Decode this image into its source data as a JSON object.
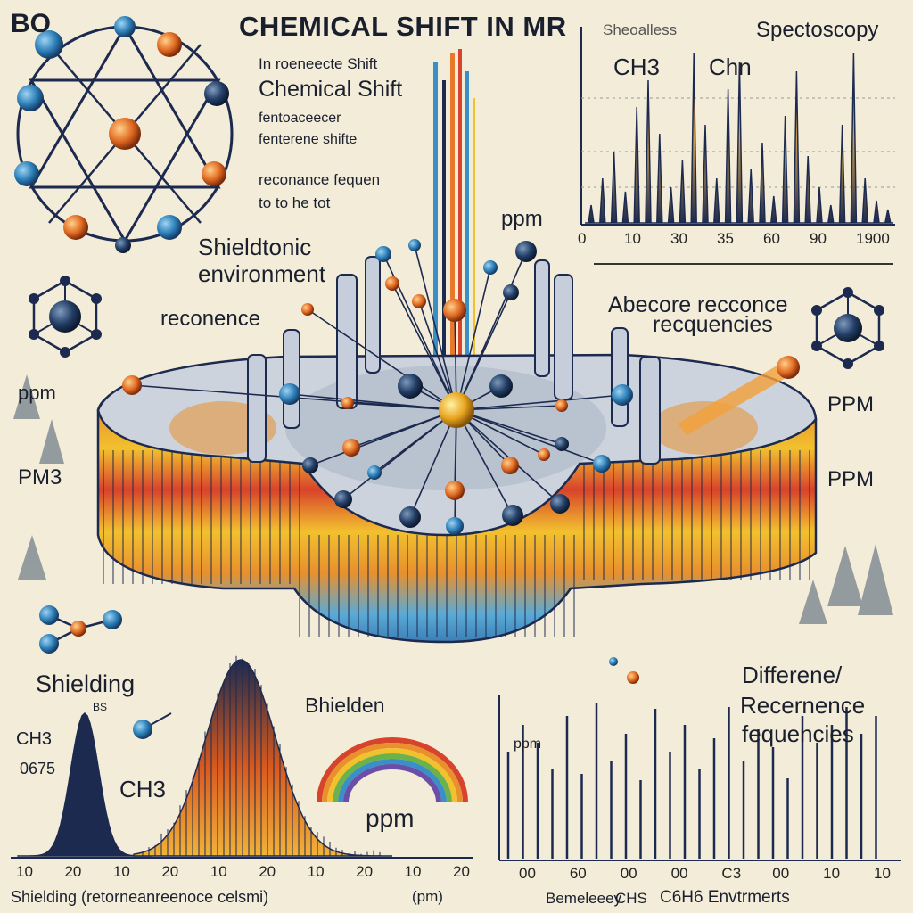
{
  "header": {
    "title": "CHEMICAL SHIFT IN MR",
    "corner_label": "BO",
    "spectroscopy_label": "Spectoscopy",
    "spectroscopy_prefix": "Sheoalless"
  },
  "center_text": {
    "line1": "In roeneecte Shift",
    "line2": "Chemical Shift",
    "line3": "fentoaceecer",
    "line4": "fenterene shifte",
    "line5": "reconance fequen",
    "line6": "to to he tot"
  },
  "top_chart": {
    "peak_label_1": "CH3",
    "peak_label_2": "Chn",
    "x_ticks": [
      "0",
      "10",
      "30",
      "35",
      "60",
      "90",
      "1900"
    ]
  },
  "labels": {
    "ppm_top": "ppm",
    "shielding_env_1": "Shieldtonic",
    "shielding_env_2": "environment",
    "resonance": "reconence",
    "resonance_right_1": "Abecore recconce",
    "resonance_right_2": "recquencies",
    "ppm_left": "ppm",
    "pm3": "PM3",
    "ppm_right": "PPM",
    "ppm_right_2": "PPM"
  },
  "bottom_left": {
    "shielding": "Shielding",
    "bs": "BS",
    "ch3_small": "CH3",
    "num": "0675",
    "ch3": "CH3",
    "bhielden": "Bhielden",
    "ppm_rainbow": "ppm",
    "x_ticks": [
      "10",
      "20",
      "10",
      "20",
      "10",
      "20",
      "10",
      "20",
      "10",
      "20"
    ],
    "xlabel": "Shielding (retorneanreenoce celsmi)",
    "xlabel_unit": "(pm)"
  },
  "bottom_right": {
    "diff_1": "Differene/",
    "diff_2": "Recernence",
    "diff_3": "fequencies",
    "ppm_small": "ppm",
    "x_ticks": [
      "00",
      "60",
      "00",
      "00",
      "C3",
      "00",
      "10",
      "10"
    ],
    "xlabel_1": "Bemeleeey",
    "xlabel_2": "C6H6 Envtrmerts",
    "xlabel_mid": "CHS"
  },
  "colors": {
    "background": "#f3ecd8",
    "navy": "#1d2a4f",
    "orange": "#e8792b",
    "blue": "#3a8fc7",
    "red": "#d8432c",
    "yellow": "#f2c12e"
  }
}
